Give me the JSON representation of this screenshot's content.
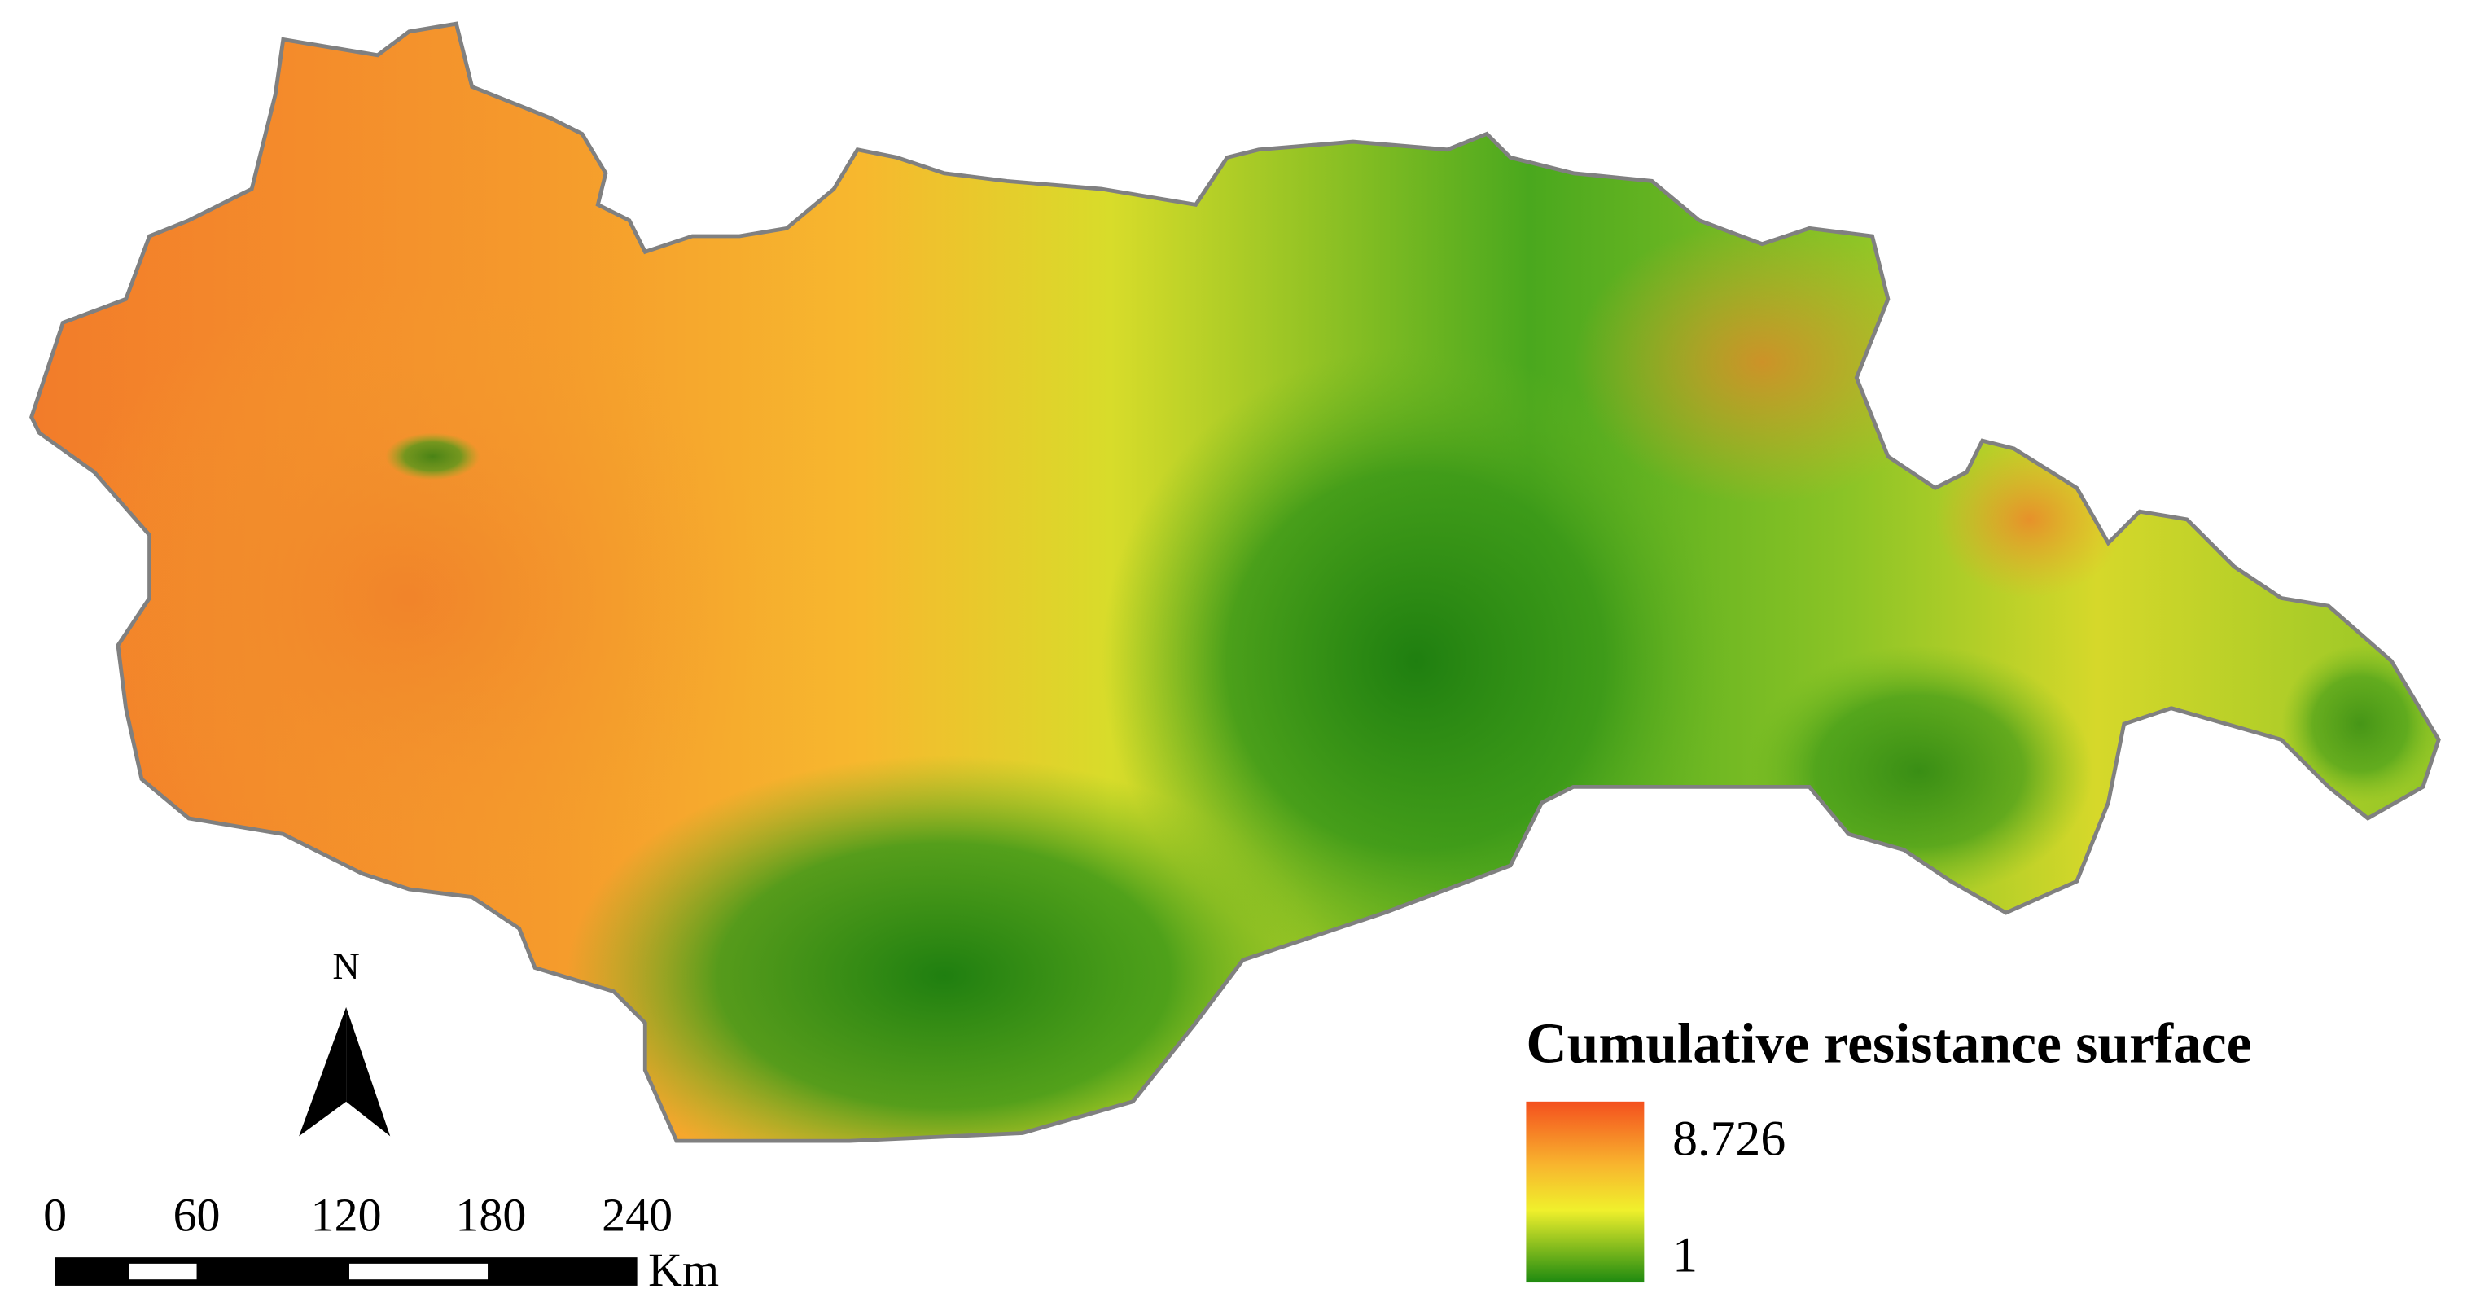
{
  "map": {
    "north_label": "N",
    "scale_bar": {
      "labels": [
        "0",
        "60",
        "120",
        "180",
        "240"
      ],
      "unit": "Km"
    },
    "legend": {
      "title": "Cumulative resistance surface",
      "max_label": "8.726",
      "min_label": "1"
    }
  }
}
